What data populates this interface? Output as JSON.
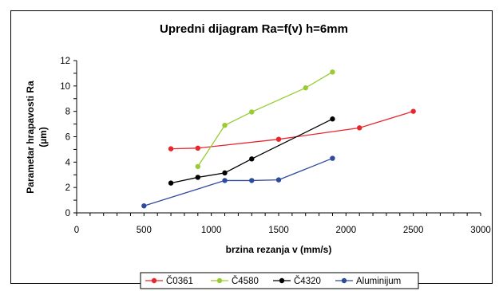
{
  "chart_data": {
    "type": "line",
    "title": "Upredni dijagram Ra=f(v) h=6mm",
    "xlabel": "brzina rezanja  v (mm/s)",
    "ylabel_line1": "Parametar  hrapavosti Ra",
    "ylabel_line2": "(µm)",
    "xlim": [
      0,
      3000
    ],
    "ylim": [
      0,
      12
    ],
    "xticks": [
      "0",
      "500",
      "1000",
      "1500",
      "2000",
      "2500",
      "3000"
    ],
    "yticks": [
      "0",
      "2",
      "4",
      "6",
      "8",
      "10",
      "12"
    ],
    "x_minor_step": 100,
    "y_minor_step": 1,
    "grid": false,
    "legend_position": "bottom",
    "series": [
      {
        "name": "Č0361",
        "color": "#e8262b",
        "x": [
          700,
          900,
          1500,
          2100,
          2500
        ],
        "y": [
          5.05,
          5.1,
          5.8,
          6.7,
          8.0
        ]
      },
      {
        "name": "Č4580",
        "color": "#99cc33",
        "x": [
          900,
          1100,
          1300,
          1700,
          1900
        ],
        "y": [
          3.65,
          6.9,
          7.95,
          9.85,
          11.1
        ]
      },
      {
        "name": "Č4320",
        "color": "#000000",
        "x": [
          700,
          900,
          1100,
          1300,
          1900
        ],
        "y": [
          2.35,
          2.8,
          3.15,
          4.25,
          7.4
        ]
      },
      {
        "name": "Aluminijum",
        "color": "#2e4a9e",
        "x": [
          500,
          1100,
          1300,
          1500,
          1900
        ],
        "y": [
          0.55,
          2.55,
          2.55,
          2.6,
          4.3
        ]
      }
    ]
  }
}
